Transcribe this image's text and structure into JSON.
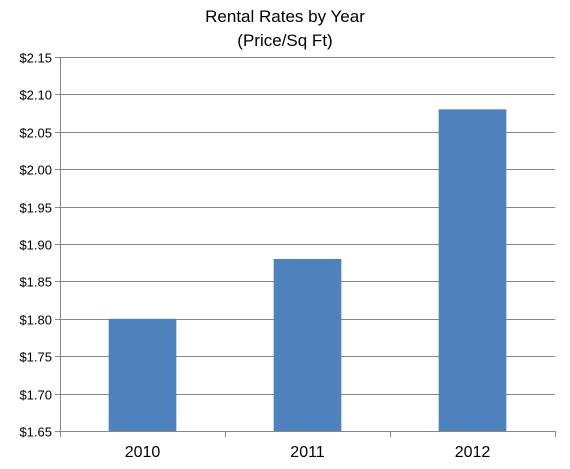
{
  "chart_data": {
    "type": "bar",
    "title": "Rental Rates by Year",
    "subtitle": "(Price/Sq Ft)",
    "categories": [
      "2010",
      "2011",
      "2012"
    ],
    "values": [
      1.8,
      1.88,
      2.08
    ],
    "ylim": [
      1.65,
      2.15
    ],
    "yticks": [
      "$1.65",
      "$1.70",
      "$1.75",
      "$1.80",
      "$1.85",
      "$1.90",
      "$1.95",
      "$2.00",
      "$2.05",
      "$2.10",
      "$2.15"
    ],
    "grid": true,
    "bar_color": "#4f81bd",
    "grid_color": "#868686",
    "axis_color": "#868686"
  }
}
